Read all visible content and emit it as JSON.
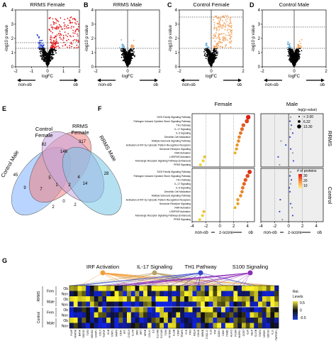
{
  "panel_letters": [
    "A",
    "B",
    "C",
    "D",
    "E",
    "F",
    "G"
  ],
  "volcano": {
    "y_label": "-log10 p value",
    "x_label": "logFC",
    "direction_left": "non-ob",
    "direction_right": "ob",
    "panels": [
      {
        "title": "RRMS Female",
        "x_ticks": [
          "-2",
          "-1",
          "0",
          "1",
          "2"
        ],
        "y_ticks": [
          "0",
          "1",
          "2",
          "3",
          "4"
        ],
        "xlim": [
          -2,
          2
        ],
        "ylim": [
          0,
          4
        ],
        "threshold_low": 1.3,
        "threshold_high": 1.7,
        "up_color": "#e41a1c",
        "down_color": "#2b44c8"
      },
      {
        "title": "RRMS Male",
        "x_ticks": [
          "-2",
          "0",
          "2"
        ],
        "y_ticks": [
          "0",
          "1",
          "2",
          "3",
          "4"
        ],
        "xlim": [
          -2,
          2
        ],
        "ylim": [
          0,
          4
        ],
        "threshold_low": 1.3,
        "threshold_high": 1.3,
        "up_color": "#f4a460",
        "down_color": "#6baed6"
      },
      {
        "title": "Control Female",
        "x_ticks": [
          "-2",
          "0",
          "2"
        ],
        "y_ticks": [
          "0",
          "1",
          "2",
          "3",
          "4"
        ],
        "xlim": [
          -2,
          2
        ],
        "ylim": [
          0,
          4
        ],
        "threshold_low": 1.3,
        "threshold_high": 3.5,
        "up_color": "#f4a460",
        "down_color": "#6baed6"
      },
      {
        "title": "Control Male",
        "x_ticks": [
          "-2",
          "0",
          "2"
        ],
        "y_ticks": [
          "0",
          "1",
          "2",
          "3",
          "4"
        ],
        "xlim": [
          -2,
          2
        ],
        "ylim": [
          0,
          4
        ],
        "threshold_low": 1.3,
        "threshold_high": 2.8,
        "up_color": "#f4a460",
        "down_color": "#6baed6"
      }
    ]
  },
  "venn": {
    "sets": [
      {
        "name": "Control Female",
        "color": "#f08080"
      },
      {
        "name": "RRMS Female",
        "color": "#c9a6e0"
      },
      {
        "name": "RRMS Male",
        "color": "#7fb3ff"
      },
      {
        "name": "Control Male",
        "color": "#79c7e8"
      }
    ],
    "counts": [
      "82",
      "317",
      "45",
      "28",
      "146",
      "9",
      "7",
      "14",
      "5",
      "0",
      "4",
      "1",
      "2",
      "2",
      "2"
    ]
  },
  "pathways": {
    "col_titles": [
      "Female",
      "Male"
    ],
    "row_titles": [
      "RRMS",
      "Control"
    ],
    "x_label": "z-score",
    "x_ticks": [
      "-4",
      "-2",
      "0",
      "2",
      "4"
    ],
    "direction_left": "non-ob",
    "direction_right": "ob",
    "items": [
      "S100 Family Signaling Pathway",
      "Pathogen Induced Cytokine Storm Signaling Pathway",
      "TH1 Pathway",
      "IL-17 Signaling",
      "IL-6 Signaling",
      "Dendritic Cell Maturation",
      "Multiple Sclerosis Signaling Pathway",
      "Activation of IRF by Cytosolic Pattern Recognition Receptors",
      "Serotonin Receptor Signaling",
      "RAR Activation",
      "LXR/RXR Activation",
      "Adrenergic Receptor Signaling Pathway (Enhanced)",
      "PPAR Signaling"
    ],
    "size_legend_title": "-log(p-value)",
    "size_legend_items": [
      "< 3.00",
      "6.32",
      "13.30"
    ],
    "color_legend_title": "# of proteins",
    "color_legend_ticks": [
      "30",
      "20",
      "10"
    ],
    "chart_data": {
      "type": "scatter",
      "xlim": [
        -4,
        5
      ],
      "RRMS_Female": [
        [
          4.1,
          13.3,
          30
        ],
        [
          3.9,
          10,
          25
        ],
        [
          3.4,
          8,
          22
        ],
        [
          3.2,
          7,
          20
        ],
        [
          3.0,
          6,
          18
        ],
        [
          2.8,
          5,
          16
        ],
        [
          2.7,
          5,
          15
        ],
        [
          2.5,
          4,
          14
        ],
        [
          2.4,
          4,
          12
        ],
        [
          2.2,
          3,
          10
        ],
        [
          -2.2,
          3,
          8
        ],
        [
          -2.4,
          3,
          6
        ],
        [
          -2.8,
          3,
          5
        ]
      ],
      "RRMS_Male": [
        [
          0.3,
          3,
          10
        ],
        [
          0.2,
          3,
          8
        ],
        [
          0.4,
          3,
          8
        ],
        [
          0.3,
          3,
          6
        ],
        [
          0.6,
          3,
          7
        ],
        [
          0.2,
          3,
          5
        ],
        [
          -1.1,
          3,
          6
        ],
        [
          -0.4,
          3,
          5
        ],
        [
          0.3,
          3,
          4
        ],
        [
          0.6,
          3,
          4
        ],
        [
          -1.5,
          3,
          3
        ],
        [
          0.7,
          3,
          4
        ],
        [
          -1.3,
          3,
          3
        ]
      ],
      "Control_Female": [
        [
          4.3,
          11,
          28
        ],
        [
          4.0,
          9,
          24
        ],
        [
          3.7,
          8,
          22
        ],
        [
          3.5,
          7,
          20
        ],
        [
          3.3,
          6,
          18
        ],
        [
          3.2,
          5,
          16
        ],
        [
          3.0,
          5,
          15
        ],
        [
          2.6,
          4,
          13
        ],
        [
          2.6,
          4,
          12
        ],
        [
          2.2,
          3,
          10
        ],
        [
          -2.3,
          3,
          8
        ],
        [
          -2.5,
          3,
          6
        ],
        [
          -2.9,
          3,
          5
        ]
      ],
      "Control_Male": [
        [
          0.3,
          3,
          10
        ],
        [
          0.2,
          3,
          8
        ],
        [
          0.4,
          3,
          8
        ],
        [
          0.3,
          3,
          6
        ],
        [
          0.1,
          3,
          7
        ],
        [
          0.2,
          3,
          5
        ],
        [
          0.0,
          3,
          6
        ],
        [
          -1.2,
          3,
          5
        ],
        [
          0.3,
          3,
          4
        ],
        [
          0.5,
          3,
          4
        ],
        [
          -1.3,
          3,
          3
        ],
        [
          0.6,
          3,
          4
        ],
        [
          -0.9,
          3,
          3
        ]
      ]
    }
  },
  "heatmap": {
    "pathway_labels": [
      {
        "name": "IRF Activation",
        "color": "#f39c34"
      },
      {
        "name": "IL-17 Signaling",
        "color": "#b8a26a"
      },
      {
        "name": "TH1 Pathway",
        "color": "#3346c8"
      },
      {
        "name": "S100 Signaling",
        "color": "#8e2bb8"
      }
    ],
    "group_labels": [
      "RRMS",
      "Control"
    ],
    "sex_labels": [
      "Fem",
      "Male",
      "Fem",
      "Male"
    ],
    "row_labels": [
      "Ob",
      "Non",
      "Ob",
      "Non",
      "Ob",
      "Non",
      "Ob",
      "Non"
    ],
    "legend_title": "Rel. Levels",
    "legend_ticks": [
      "0.5",
      "0",
      "-0.5"
    ],
    "genes": [
      "FLAP",
      "MAP3K",
      "BANK",
      "SOCS2",
      "TLR3",
      "MKNK2",
      "CASP1",
      "CCL5",
      "TNFSF",
      "IL1B",
      "STAT1",
      "MMP9",
      "CD40",
      "IFIT",
      "CXCL9",
      "IL17A",
      "JAK2",
      "IRF7",
      "NFKB",
      "CCL20",
      "IL6",
      "S100A8",
      "S100A9",
      "TLR4",
      "MYD88",
      "IL12B",
      "CD86",
      "TRAF6",
      "SYK",
      "PIK3",
      "RELA",
      "CHUK",
      "IKBKB",
      "CXCL10",
      "IL23",
      "TNF",
      "ICAM1",
      "CD80",
      "ITGB2",
      "HLA-D",
      "FCGR",
      "MAPK1",
      "CCR7",
      "IL1R",
      "SELP",
      "S100B",
      "STAT3",
      "NFATC",
      "SOCS3",
      "IL10",
      "TNFRSF1"
    ]
  }
}
